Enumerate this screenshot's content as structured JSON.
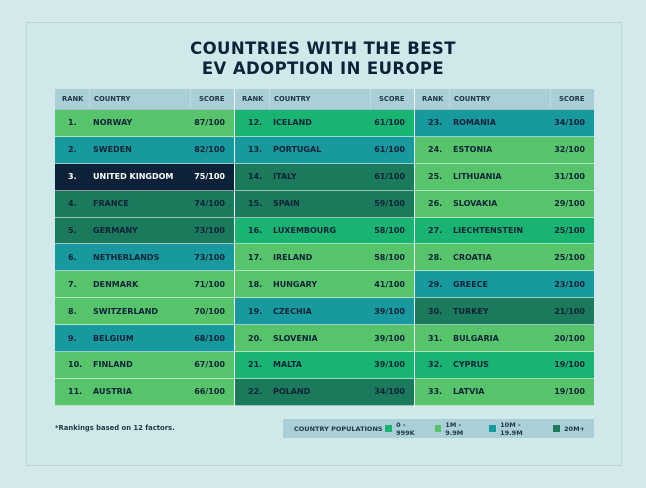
{
  "title_line1": "COUNTRIES WITH THE BEST",
  "title_line2": "EV ADOPTION IN EUROPE",
  "headers": {
    "rank": "RANK",
    "country": "COUNTRY",
    "score": "SCORE"
  },
  "colors": {
    "0-999K": "#19b472",
    "1M-9.9M": "#57c46b",
    "10M-19.9M": "#17999e",
    "20M+": "#1c7a5c",
    "highlight": "#0d2238"
  },
  "columns": [
    [
      {
        "rank": "1.",
        "country": "NORWAY",
        "score": "87/100",
        "color": "c2"
      },
      {
        "rank": "2.",
        "country": "SWEDEN",
        "score": "82/100",
        "color": "c3"
      },
      {
        "rank": "3.",
        "country": "UNITED KINGDOM",
        "score": "75/100",
        "color": "hl"
      },
      {
        "rank": "4.",
        "country": "FRANCE",
        "score": "74/100",
        "color": "c4"
      },
      {
        "rank": "5.",
        "country": "GERMANY",
        "score": "73/100",
        "color": "c4"
      },
      {
        "rank": "6.",
        "country": "NETHERLANDS",
        "score": "73/100",
        "color": "c3"
      },
      {
        "rank": "7.",
        "country": "DENMARK",
        "score": "71/100",
        "color": "c2"
      },
      {
        "rank": "8.",
        "country": "SWITZERLAND",
        "score": "70/100",
        "color": "c2"
      },
      {
        "rank": "9.",
        "country": "BELGIUM",
        "score": "68/100",
        "color": "c3"
      },
      {
        "rank": "10.",
        "country": "FINLAND",
        "score": "67/100",
        "color": "c2"
      },
      {
        "rank": "11.",
        "country": "AUSTRIA",
        "score": "66/100",
        "color": "c2"
      }
    ],
    [
      {
        "rank": "12.",
        "country": "ICELAND",
        "score": "61/100",
        "color": "c1"
      },
      {
        "rank": "13.",
        "country": "PORTUGAL",
        "score": "61/100",
        "color": "c3"
      },
      {
        "rank": "14.",
        "country": "ITALY",
        "score": "61/100",
        "color": "c4"
      },
      {
        "rank": "15.",
        "country": "SPAIN",
        "score": "59/100",
        "color": "c4"
      },
      {
        "rank": "16.",
        "country": "LUXEMBOURG",
        "score": "58/100",
        "color": "c1"
      },
      {
        "rank": "17.",
        "country": "IRELAND",
        "score": "58/100",
        "color": "c2"
      },
      {
        "rank": "18.",
        "country": "HUNGARY",
        "score": "41/100",
        "color": "c2"
      },
      {
        "rank": "19.",
        "country": "CZECHIA",
        "score": "39/100",
        "color": "c3"
      },
      {
        "rank": "20.",
        "country": "SLOVENIA",
        "score": "39/100",
        "color": "c2"
      },
      {
        "rank": "21.",
        "country": "MALTA",
        "score": "39/100",
        "color": "c1"
      },
      {
        "rank": "22.",
        "country": "POLAND",
        "score": "34/100",
        "color": "c4"
      }
    ],
    [
      {
        "rank": "23.",
        "country": "ROMANIA",
        "score": "34/100",
        "color": "c3"
      },
      {
        "rank": "24.",
        "country": "ESTONIA",
        "score": "32/100",
        "color": "c2"
      },
      {
        "rank": "25.",
        "country": "LITHUANIA",
        "score": "31/100",
        "color": "c2"
      },
      {
        "rank": "26.",
        "country": "SLOVAKIA",
        "score": "29/100",
        "color": "c2"
      },
      {
        "rank": "27.",
        "country": "LIECHTENSTEIN",
        "score": "25/100",
        "color": "c1"
      },
      {
        "rank": "28.",
        "country": "CROATIA",
        "score": "25/100",
        "color": "c2"
      },
      {
        "rank": "29.",
        "country": "GREECE",
        "score": "23/100",
        "color": "c3"
      },
      {
        "rank": "30.",
        "country": "TURKEY",
        "score": "21/100",
        "color": "c4"
      },
      {
        "rank": "31.",
        "country": "BULGARIA",
        "score": "20/100",
        "color": "c2"
      },
      {
        "rank": "32.",
        "country": "CYPRUS",
        "score": "19/100",
        "color": "c1"
      },
      {
        "rank": "33.",
        "country": "LATVIA",
        "score": "19/100",
        "color": "c2"
      }
    ]
  ],
  "footnote": "*Rankings based on 12 factors.",
  "legend": {
    "title": "COUNTRY POPULATIONS",
    "items": [
      {
        "label": "0 - 999K",
        "color": "c1"
      },
      {
        "label": "1M - 9.9M",
        "color": "c2"
      },
      {
        "label": "10M - 19.9M",
        "color": "c3"
      },
      {
        "label": "20M+",
        "color": "c4"
      }
    ]
  }
}
